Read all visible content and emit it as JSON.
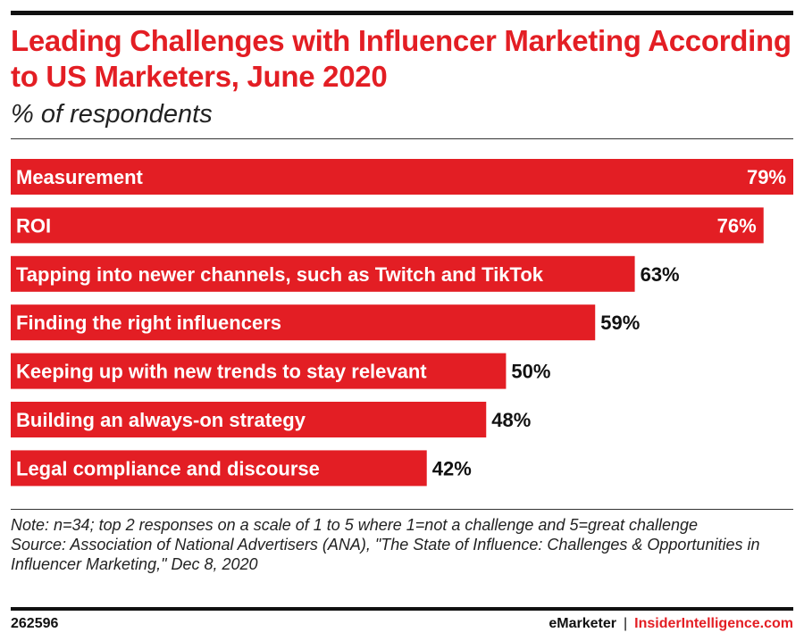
{
  "header": {
    "title": "Leading Challenges with Influencer Marketing According to US Marketers, June 2020",
    "subtitle": "% of respondents"
  },
  "chart_data": {
    "type": "bar",
    "orientation": "horizontal",
    "categories": [
      "Measurement",
      "ROI",
      "Tapping into newer channels, such as Twitch and TikTok",
      "Finding the right influencers",
      "Keeping up with new trends to stay relevant",
      "Building an always-on strategy",
      "Legal compliance and discourse"
    ],
    "values": [
      79,
      76,
      63,
      59,
      50,
      48,
      42
    ],
    "value_labels": [
      "79%",
      "76%",
      "63%",
      "59%",
      "50%",
      "48%",
      "42%"
    ],
    "unit": "%",
    "bar_color": "#e31e24",
    "grid": false,
    "legend": "none",
    "xlim": [
      0,
      79
    ]
  },
  "footer": {
    "note": "Note: n=34; top 2 responses on a scale of 1 to 5 where 1=not a challenge and 5=great challenge",
    "source": "Source: Association of National Advertisers (ANA), \"The State of Influence: Challenges & Opportunities in Influencer Marketing,\" Dec 8, 2020",
    "chart_id": "262596",
    "brand": "eMarketer",
    "separator": "|",
    "brand_site": "InsiderIntelligence.com"
  }
}
